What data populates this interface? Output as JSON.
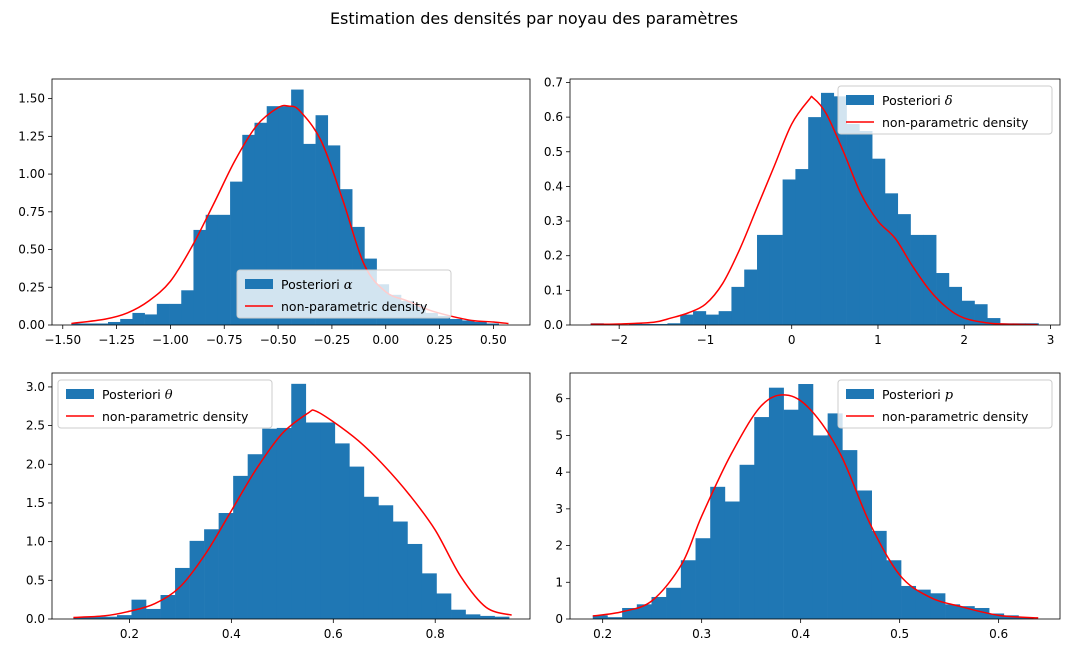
{
  "figure": {
    "suptitle": "Estimation des densités par noyau des paramètres"
  },
  "colors": {
    "hist": "#1f77b4",
    "kde": "#ff0000",
    "axis": "#000000"
  },
  "chart_data": [
    {
      "type": "bar",
      "id": "alpha",
      "legend": {
        "hist_label": "Posteriori",
        "var": "α",
        "kde_label": "non-parametric density",
        "loc": "lower-center"
      },
      "xlim": [
        -1.55,
        0.67
      ],
      "ylim": [
        0,
        1.63
      ],
      "xticks": [
        -1.5,
        -1.25,
        -1.0,
        -0.75,
        -0.5,
        -0.25,
        0.0,
        0.25,
        0.5
      ],
      "xtick_labels": [
        "−1.50",
        "−1.25",
        "−1.00",
        "−0.75",
        "−0.50",
        "−0.25",
        "0.00",
        "0.25",
        "0.50"
      ],
      "yticks": [
        0,
        0.25,
        0.5,
        0.75,
        1.0,
        1.25,
        1.5
      ],
      "ytick_labels": [
        "0.00",
        "0.25",
        "0.50",
        "0.75",
        "1.00",
        "1.25",
        "1.50"
      ],
      "bins": {
        "x0": -1.46,
        "width": 0.0567,
        "heights": [
          0.01,
          0.01,
          0.01,
          0.02,
          0.04,
          0.08,
          0.07,
          0.14,
          0.14,
          0.23,
          0.63,
          0.73,
          0.73,
          0.95,
          1.26,
          1.34,
          1.45,
          1.45,
          1.56,
          1.2,
          1.39,
          1.19,
          0.9,
          0.65,
          0.44,
          0.27,
          0.2,
          0.16,
          0.13,
          0.08,
          0.06,
          0.04,
          0.03,
          0.02,
          0.01
        ]
      },
      "kde": {
        "x": [
          -1.46,
          -1.3,
          -1.2,
          -1.1,
          -1.0,
          -0.9,
          -0.8,
          -0.7,
          -0.6,
          -0.5,
          -0.45,
          -0.4,
          -0.3,
          -0.2,
          -0.1,
          0.0,
          0.1,
          0.2,
          0.3,
          0.4,
          0.5,
          0.57
        ],
        "y": [
          0.01,
          0.04,
          0.08,
          0.16,
          0.29,
          0.52,
          0.8,
          1.09,
          1.32,
          1.44,
          1.45,
          1.42,
          1.22,
          0.83,
          0.4,
          0.22,
          0.16,
          0.1,
          0.06,
          0.03,
          0.02,
          0.01
        ]
      }
    },
    {
      "type": "bar",
      "id": "delta",
      "legend": {
        "hist_label": "Posteriori",
        "var": "δ",
        "kde_label": "non-parametric density",
        "loc": "upper-right"
      },
      "xlim": [
        -2.57,
        3.11
      ],
      "ylim": [
        0,
        0.71
      ],
      "xticks": [
        -2,
        -1,
        0,
        1,
        2,
        3
      ],
      "xtick_labels": [
        "−2",
        "−1",
        "0",
        "1",
        "2",
        "3"
      ],
      "yticks": [
        0,
        0.1,
        0.2,
        0.3,
        0.4,
        0.5,
        0.6,
        0.7
      ],
      "ytick_labels": [
        "0.0",
        "0.1",
        "0.2",
        "0.3",
        "0.4",
        "0.5",
        "0.6",
        "0.7"
      ],
      "bins": {
        "x0": -2.33,
        "width": 0.1483,
        "heights": [
          0.005,
          0,
          0,
          0.005,
          0.003,
          0.003,
          0.005,
          0.03,
          0.04,
          0.03,
          0.04,
          0.11,
          0.16,
          0.26,
          0.26,
          0.42,
          0.45,
          0.6,
          0.67,
          0.66,
          0.58,
          0.56,
          0.48,
          0.38,
          0.32,
          0.26,
          0.26,
          0.15,
          0.11,
          0.07,
          0.06,
          0.02,
          0.005,
          0.005,
          0.005
        ]
      },
      "kde": {
        "x": [
          -2.33,
          -2.0,
          -1.6,
          -1.4,
          -1.2,
          -1.0,
          -0.8,
          -0.6,
          -0.4,
          -0.2,
          0.0,
          0.2,
          0.25,
          0.4,
          0.6,
          0.8,
          1.0,
          1.2,
          1.4,
          1.6,
          1.8,
          2.0,
          2.3,
          2.6,
          2.85
        ],
        "y": [
          0.002,
          0.003,
          0.008,
          0.02,
          0.035,
          0.06,
          0.12,
          0.22,
          0.34,
          0.46,
          0.58,
          0.65,
          0.655,
          0.61,
          0.5,
          0.38,
          0.3,
          0.25,
          0.17,
          0.1,
          0.05,
          0.02,
          0.005,
          0.002,
          0.001
        ]
      }
    },
    {
      "type": "bar",
      "id": "theta",
      "legend": {
        "hist_label": "Posteriori",
        "var": "θ",
        "kde_label": "non-parametric density",
        "loc": "upper-left"
      },
      "xlim": [
        0.048,
        0.986
      ],
      "ylim": [
        0,
        3.18
      ],
      "xticks": [
        0.2,
        0.4,
        0.6,
        0.8
      ],
      "xtick_labels": [
        "0.2",
        "0.4",
        "0.6",
        "0.8"
      ],
      "yticks": [
        0,
        0.5,
        1.0,
        1.5,
        2.0,
        2.5,
        3.0
      ],
      "ytick_labels": [
        "0.0",
        "0.5",
        "1.0",
        "1.5",
        "2.0",
        "2.5",
        "3.0"
      ],
      "bins": {
        "x0": 0.09,
        "width": 0.0285,
        "heights": [
          0.02,
          0.03,
          0.03,
          0.05,
          0.25,
          0.13,
          0.31,
          0.66,
          1.01,
          1.16,
          1.37,
          1.85,
          2.13,
          2.46,
          2.47,
          3.04,
          2.54,
          2.54,
          2.27,
          1.97,
          1.58,
          1.47,
          1.26,
          0.97,
          0.59,
          0.33,
          0.12,
          0.06,
          0.04,
          0.03
        ]
      },
      "kde": {
        "x": [
          0.09,
          0.15,
          0.2,
          0.25,
          0.3,
          0.35,
          0.4,
          0.45,
          0.5,
          0.55,
          0.565,
          0.6,
          0.65,
          0.7,
          0.75,
          0.8,
          0.85,
          0.9,
          0.95
        ],
        "y": [
          0.02,
          0.04,
          0.1,
          0.2,
          0.42,
          0.85,
          1.4,
          1.95,
          2.4,
          2.66,
          2.69,
          2.55,
          2.3,
          1.98,
          1.6,
          1.15,
          0.55,
          0.15,
          0.05
        ]
      }
    },
    {
      "type": "bar",
      "id": "p",
      "legend": {
        "hist_label": "Posteriori",
        "var": "p",
        "kde_label": "non-parametric density",
        "loc": "upper-right"
      },
      "xlim": [
        0.167,
        0.662
      ],
      "ylim": [
        0,
        6.7
      ],
      "xticks": [
        0.2,
        0.3,
        0.4,
        0.5,
        0.6
      ],
      "xtick_labels": [
        "0.2",
        "0.3",
        "0.4",
        "0.5",
        "0.6"
      ],
      "yticks": [
        0,
        1,
        2,
        3,
        4,
        5,
        6
      ],
      "ytick_labels": [
        "0",
        "1",
        "2",
        "3",
        "4",
        "5",
        "6"
      ],
      "bins": {
        "x0": 0.19,
        "width": 0.01483,
        "heights": [
          0.1,
          0.05,
          0.3,
          0.4,
          0.6,
          0.85,
          1.6,
          2.2,
          3.6,
          3.2,
          4.2,
          5.5,
          6.3,
          5.7,
          6.4,
          5.0,
          5.6,
          4.6,
          3.5,
          2.4,
          1.6,
          0.9,
          0.8,
          0.7,
          0.4,
          0.35,
          0.3,
          0.15,
          0.1,
          0.05
        ]
      },
      "kde": {
        "x": [
          0.19,
          0.22,
          0.25,
          0.28,
          0.3,
          0.33,
          0.36,
          0.385,
          0.41,
          0.44,
          0.47,
          0.5,
          0.53,
          0.56,
          0.6,
          0.64
        ],
        "y": [
          0.08,
          0.2,
          0.5,
          1.5,
          2.8,
          4.5,
          5.8,
          6.1,
          5.7,
          4.5,
          2.6,
          1.2,
          0.6,
          0.35,
          0.1,
          0.03
        ]
      }
    }
  ]
}
